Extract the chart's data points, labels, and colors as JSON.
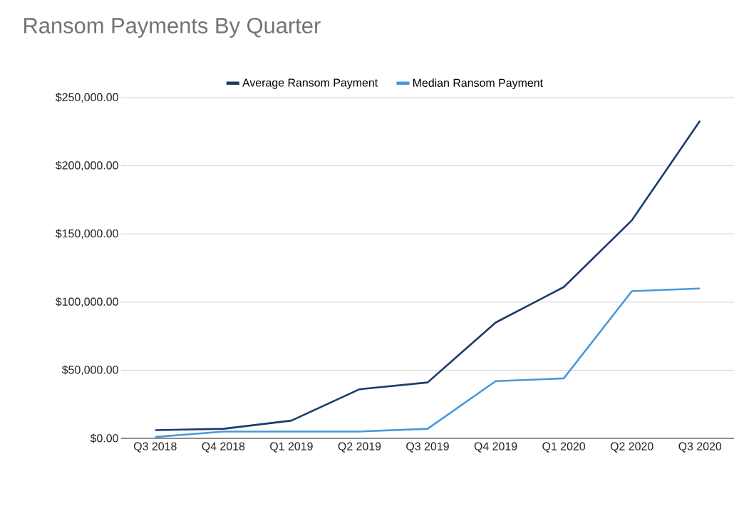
{
  "chart_data": {
    "type": "line",
    "title": "Ransom Payments By Quarter",
    "categories": [
      "Q3 2018",
      "Q4 2018",
      "Q1 2019",
      "Q2 2019",
      "Q3 2019",
      "Q4 2019",
      "Q1 2020",
      "Q2 2020",
      "Q3 2020"
    ],
    "series": [
      {
        "name": "Average Ransom Payment",
        "color": "#1b3a6b",
        "values": [
          6000,
          7000,
          13000,
          36000,
          41000,
          85000,
          111000,
          160000,
          233000
        ]
      },
      {
        "name": "Median Ransom Payment",
        "color": "#4a98d8",
        "values": [
          1000,
          5000,
          5000,
          5000,
          7000,
          42000,
          44000,
          108000,
          110000
        ]
      }
    ],
    "ylim": [
      0,
      250000
    ],
    "yticks": [
      {
        "value": 0,
        "label": "$0.00"
      },
      {
        "value": 50000,
        "label": "$50,000.00"
      },
      {
        "value": 100000,
        "label": "$100,000.00"
      },
      {
        "value": 150000,
        "label": "$150,000.00"
      },
      {
        "value": 200000,
        "label": "$200,000.00"
      },
      {
        "value": 250000,
        "label": "$250,000.00"
      }
    ],
    "grid": "y",
    "legend": "top",
    "marker": "none",
    "line_style": "solid"
  }
}
